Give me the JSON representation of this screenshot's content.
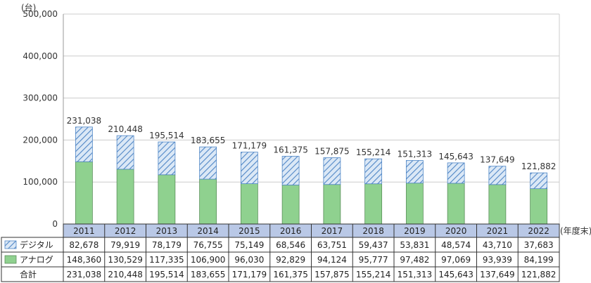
{
  "chart_data": {
    "type": "bar",
    "stacked": true,
    "unit_label": "(台)",
    "x_unit_label": "(年度末)",
    "categories": [
      "2011",
      "2012",
      "2013",
      "2014",
      "2015",
      "2016",
      "2017",
      "2018",
      "2019",
      "2020",
      "2021",
      "2022"
    ],
    "series": [
      {
        "name": "アナログ",
        "values": [
          148360,
          130529,
          117335,
          106900,
          96030,
          92829,
          94124,
          95777,
          97482,
          97069,
          93939,
          84199
        ],
        "color": "#8fd18f",
        "pattern": "solid"
      },
      {
        "name": "デジタル",
        "values": [
          82678,
          79919,
          78179,
          76755,
          75149,
          68546,
          63751,
          59437,
          53831,
          48574,
          43710,
          37683
        ],
        "color": "#4f86c6",
        "pattern": "hatched"
      }
    ],
    "totals_label": "合計",
    "totals": [
      231038,
      210448,
      195514,
      183655,
      171179,
      161375,
      157875,
      155214,
      151313,
      145643,
      137649,
      121882
    ],
    "ylim": [
      0,
      500000
    ],
    "yticks": [
      0,
      100000,
      200000,
      300000,
      400000,
      500000
    ],
    "grid": true,
    "table_rows_order": [
      "デジタル",
      "アナログ",
      "合計"
    ]
  }
}
